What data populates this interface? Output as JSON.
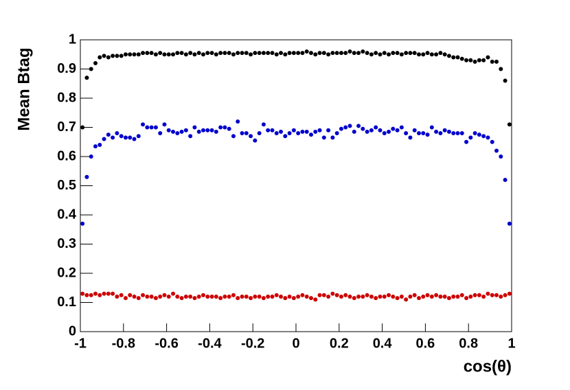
{
  "chart_data": {
    "type": "scatter",
    "xlabel": "cos(θ)",
    "ylabel": "Mean Btag",
    "xlim": [
      -1,
      1
    ],
    "ylim": [
      0,
      1
    ],
    "xticks": [
      -1,
      -0.8,
      -0.6,
      -0.4,
      -0.2,
      0,
      0.2,
      0.4,
      0.6,
      0.8,
      1
    ],
    "yticks": [
      0,
      0.1,
      0.2,
      0.3,
      0.4,
      0.5,
      0.6,
      0.7,
      0.8,
      0.9,
      1
    ],
    "x": [
      -0.99,
      -0.97,
      -0.95,
      -0.93,
      -0.91,
      -0.89,
      -0.87,
      -0.85,
      -0.83,
      -0.81,
      -0.79,
      -0.77,
      -0.75,
      -0.73,
      -0.71,
      -0.69,
      -0.67,
      -0.65,
      -0.63,
      -0.61,
      -0.59,
      -0.57,
      -0.55,
      -0.53,
      -0.51,
      -0.49,
      -0.47,
      -0.45,
      -0.43,
      -0.41,
      -0.39,
      -0.37,
      -0.35,
      -0.33,
      -0.31,
      -0.29,
      -0.27,
      -0.25,
      -0.23,
      -0.21,
      -0.19,
      -0.17,
      -0.15,
      -0.13,
      -0.11,
      -0.09,
      -0.07,
      -0.05,
      -0.03,
      -0.01,
      0.01,
      0.03,
      0.05,
      0.07,
      0.09,
      0.11,
      0.13,
      0.15,
      0.17,
      0.19,
      0.21,
      0.23,
      0.25,
      0.27,
      0.29,
      0.31,
      0.33,
      0.35,
      0.37,
      0.39,
      0.41,
      0.43,
      0.45,
      0.47,
      0.49,
      0.51,
      0.53,
      0.55,
      0.57,
      0.59,
      0.61,
      0.63,
      0.65,
      0.67,
      0.69,
      0.71,
      0.73,
      0.75,
      0.77,
      0.79,
      0.81,
      0.83,
      0.85,
      0.87,
      0.89,
      0.91,
      0.93,
      0.95,
      0.97,
      0.99
    ],
    "series": [
      {
        "color": "#000000",
        "values": [
          0.7,
          0.87,
          0.9,
          0.92,
          0.94,
          0.945,
          0.94,
          0.945,
          0.945,
          0.945,
          0.95,
          0.95,
          0.95,
          0.95,
          0.955,
          0.955,
          0.955,
          0.95,
          0.955,
          0.95,
          0.95,
          0.95,
          0.955,
          0.955,
          0.95,
          0.955,
          0.95,
          0.955,
          0.95,
          0.955,
          0.955,
          0.95,
          0.955,
          0.955,
          0.955,
          0.95,
          0.955,
          0.955,
          0.955,
          0.95,
          0.955,
          0.955,
          0.955,
          0.955,
          0.955,
          0.95,
          0.955,
          0.95,
          0.955,
          0.955,
          0.955,
          0.955,
          0.96,
          0.955,
          0.95,
          0.955,
          0.955,
          0.95,
          0.955,
          0.955,
          0.955,
          0.955,
          0.96,
          0.955,
          0.955,
          0.96,
          0.955,
          0.95,
          0.955,
          0.95,
          0.955,
          0.95,
          0.955,
          0.955,
          0.95,
          0.955,
          0.955,
          0.955,
          0.95,
          0.95,
          0.955,
          0.95,
          0.95,
          0.955,
          0.95,
          0.945,
          0.94,
          0.94,
          0.935,
          0.93,
          0.93,
          0.925,
          0.93,
          0.93,
          0.94,
          0.925,
          0.925,
          0.9,
          0.86,
          0.71
        ]
      },
      {
        "color": "#0000cc",
        "values": [
          0.37,
          0.53,
          0.6,
          0.635,
          0.64,
          0.66,
          0.675,
          0.665,
          0.68,
          0.67,
          0.665,
          0.665,
          0.66,
          0.67,
          0.71,
          0.7,
          0.7,
          0.7,
          0.68,
          0.71,
          0.69,
          0.685,
          0.68,
          0.685,
          0.69,
          0.67,
          0.7,
          0.685,
          0.69,
          0.69,
          0.69,
          0.685,
          0.7,
          0.7,
          0.695,
          0.67,
          0.72,
          0.68,
          0.68,
          0.67,
          0.655,
          0.68,
          0.71,
          0.69,
          0.69,
          0.68,
          0.685,
          0.67,
          0.68,
          0.69,
          0.68,
          0.685,
          0.685,
          0.675,
          0.685,
          0.69,
          0.665,
          0.69,
          0.665,
          0.68,
          0.695,
          0.7,
          0.705,
          0.685,
          0.705,
          0.695,
          0.685,
          0.69,
          0.7,
          0.69,
          0.68,
          0.685,
          0.695,
          0.69,
          0.7,
          0.68,
          0.665,
          0.69,
          0.68,
          0.68,
          0.675,
          0.7,
          0.685,
          0.68,
          0.69,
          0.685,
          0.68,
          0.68,
          0.68,
          0.65,
          0.665,
          0.68,
          0.675,
          0.67,
          0.665,
          0.65,
          0.62,
          0.6,
          0.52,
          0.37
        ]
      },
      {
        "color": "#cc0000",
        "values": [
          0.13,
          0.125,
          0.125,
          0.13,
          0.125,
          0.13,
          0.13,
          0.13,
          0.12,
          0.125,
          0.115,
          0.125,
          0.12,
          0.115,
          0.125,
          0.12,
          0.12,
          0.115,
          0.12,
          0.125,
          0.12,
          0.13,
          0.12,
          0.115,
          0.12,
          0.12,
          0.115,
          0.12,
          0.125,
          0.12,
          0.12,
          0.12,
          0.115,
          0.12,
          0.12,
          0.125,
          0.115,
          0.12,
          0.12,
          0.115,
          0.12,
          0.12,
          0.115,
          0.12,
          0.12,
          0.125,
          0.12,
          0.115,
          0.12,
          0.115,
          0.12,
          0.125,
          0.12,
          0.115,
          0.11,
          0.125,
          0.125,
          0.12,
          0.13,
          0.125,
          0.12,
          0.125,
          0.12,
          0.115,
          0.12,
          0.12,
          0.125,
          0.12,
          0.115,
          0.12,
          0.12,
          0.125,
          0.12,
          0.115,
          0.12,
          0.11,
          0.12,
          0.125,
          0.115,
          0.12,
          0.125,
          0.12,
          0.125,
          0.12,
          0.12,
          0.115,
          0.12,
          0.12,
          0.125,
          0.115,
          0.12,
          0.125,
          0.125,
          0.12,
          0.13,
          0.125,
          0.125,
          0.12,
          0.125,
          0.13
        ]
      }
    ]
  }
}
